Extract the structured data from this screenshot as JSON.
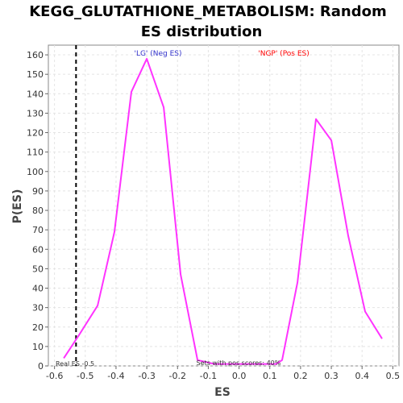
{
  "chart_data": {
    "type": "line",
    "title_line1": "KEGG_GLUTATHIONE_METABOLISM: Random",
    "title_line2": "ES distribution",
    "xlabel": "ES",
    "ylabel": "P(ES)",
    "xlim": [
      -0.62,
      0.52
    ],
    "ylim": [
      0,
      165
    ],
    "xticks": [
      -0.6,
      -0.5,
      -0.4,
      -0.3,
      -0.2,
      -0.1,
      0.0,
      0.1,
      0.2,
      0.3,
      0.4,
      0.5
    ],
    "xtick_labels": [
      "-0.6",
      "-0.5",
      "-0.4",
      "-0.3",
      "-0.2",
      "-0.1",
      "0.0",
      "0.1",
      "0.2",
      "0.3",
      "0.4",
      "0.5"
    ],
    "yticks": [
      0,
      10,
      20,
      30,
      40,
      50,
      60,
      70,
      80,
      90,
      100,
      110,
      120,
      130,
      140,
      150,
      160
    ],
    "ytick_labels": [
      "0",
      "10",
      "20",
      "30",
      "40",
      "50",
      "60",
      "70",
      "80",
      "90",
      "100",
      "110",
      "120",
      "130",
      "140",
      "150",
      "160"
    ],
    "grid": true,
    "series": [
      {
        "color": "#ff33ff",
        "x": [
          -0.57,
          -0.52,
          -0.46,
          -0.405,
          -0.35,
          -0.3,
          -0.245,
          -0.19,
          -0.135,
          -0.08,
          0.12,
          0.14,
          0.19,
          0.25,
          0.3,
          0.355,
          0.41,
          0.465
        ],
        "y": [
          4,
          16,
          31,
          69,
          141,
          158,
          133,
          47,
          3,
          1,
          1,
          3,
          43,
          127,
          116,
          67,
          28,
          14
        ]
      }
    ],
    "real_es": -0.53,
    "real_es_color": "#000000",
    "annotations": {
      "neg_label": "'LG' (Neg ES)",
      "neg_color": "#3333cc",
      "pos_label": "'NGP' (Pos ES)",
      "pos_color": "#ff0000",
      "real_es_label": "Real ES -0.5",
      "pos_scores_label": "Sets with pos scores: 40%"
    }
  }
}
